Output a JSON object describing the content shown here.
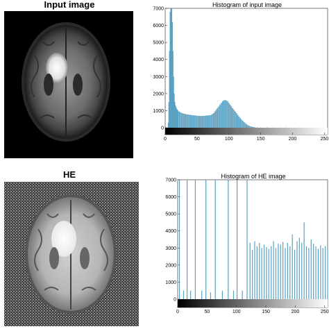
{
  "top_image": {
    "title": "Input image"
  },
  "bottom_image": {
    "title": "HE"
  },
  "chart_data": [
    {
      "type": "bar",
      "title": "Histogram of input image",
      "xlabel": "",
      "ylabel": "",
      "xlim": [
        0,
        255
      ],
      "ylim": [
        0,
        7000
      ],
      "yticks": [
        0,
        1000,
        2000,
        3000,
        4000,
        5000,
        6000,
        7000
      ],
      "xticks": [
        0,
        50,
        100,
        150,
        200,
        250
      ],
      "grayscale_bar": true,
      "x": [
        5,
        6,
        7,
        8,
        9,
        10,
        11,
        12,
        13,
        14,
        15,
        16,
        17,
        18,
        19,
        20,
        22,
        24,
        26,
        28,
        30,
        32,
        34,
        36,
        38,
        40,
        42,
        44,
        46,
        48,
        50,
        52,
        54,
        56,
        58,
        60,
        62,
        64,
        66,
        68,
        70,
        72,
        74,
        76,
        78,
        80,
        82,
        84,
        86,
        88,
        90,
        92,
        94,
        96,
        98,
        100,
        102,
        104,
        106,
        108,
        110,
        112,
        114,
        116,
        118,
        120,
        122,
        124,
        126,
        128,
        130,
        132,
        134,
        136,
        138,
        140,
        145,
        150,
        160,
        170,
        180,
        190,
        200,
        210,
        220,
        230,
        240,
        250,
        255
      ],
      "values": [
        300,
        1500,
        4500,
        6800,
        7000,
        7000,
        6200,
        4500,
        3000,
        2000,
        1500,
        1300,
        1200,
        1100,
        1050,
        1000,
        950,
        900,
        870,
        840,
        820,
        800,
        780,
        770,
        760,
        750,
        740,
        730,
        720,
        710,
        700,
        700,
        690,
        690,
        690,
        700,
        700,
        710,
        720,
        720,
        730,
        750,
        800,
        850,
        950,
        1050,
        1150,
        1250,
        1350,
        1450,
        1550,
        1600,
        1620,
        1600,
        1550,
        1450,
        1350,
        1250,
        1150,
        1050,
        950,
        850,
        750,
        650,
        560,
        480,
        400,
        330,
        260,
        200,
        150,
        110,
        80,
        60,
        40,
        30,
        20,
        15,
        12,
        10,
        10,
        10,
        8,
        8,
        6,
        6,
        5,
        5,
        5
      ]
    },
    {
      "type": "bar",
      "title": "Histogram of HE image",
      "xlabel": "",
      "ylabel": "",
      "xlim": [
        0,
        255
      ],
      "ylim": [
        0,
        7000
      ],
      "yticks": [
        0,
        1000,
        2000,
        3000,
        4000,
        5000,
        6000,
        7000
      ],
      "xticks": [
        0,
        50,
        100,
        150,
        200,
        250
      ],
      "grayscale_bar": true,
      "x": [
        3,
        10,
        16,
        22,
        30,
        41,
        48,
        56,
        64,
        76,
        86,
        95,
        101,
        110,
        118,
        123,
        127,
        131,
        135,
        139,
        143,
        147,
        151,
        155,
        159,
        163,
        167,
        171,
        175,
        179,
        183,
        187,
        191,
        195,
        199,
        203,
        207,
        211,
        215,
        219,
        223,
        227,
        231,
        235,
        239,
        243,
        247,
        251,
        255
      ],
      "values": [
        7000,
        500,
        7000,
        500,
        7000,
        500,
        7000,
        400,
        7000,
        500,
        7000,
        500,
        7000,
        500,
        7000,
        3300,
        2900,
        3400,
        3100,
        3300,
        3000,
        3200,
        3050,
        2950,
        3100,
        3400,
        3000,
        3250,
        3200,
        3350,
        3000,
        3300,
        3100,
        3800,
        2900,
        3400,
        3600,
        3300,
        4500,
        3100,
        3000,
        3500,
        3250,
        3100,
        2950,
        3150,
        3000,
        3100,
        2800
      ]
    }
  ]
}
